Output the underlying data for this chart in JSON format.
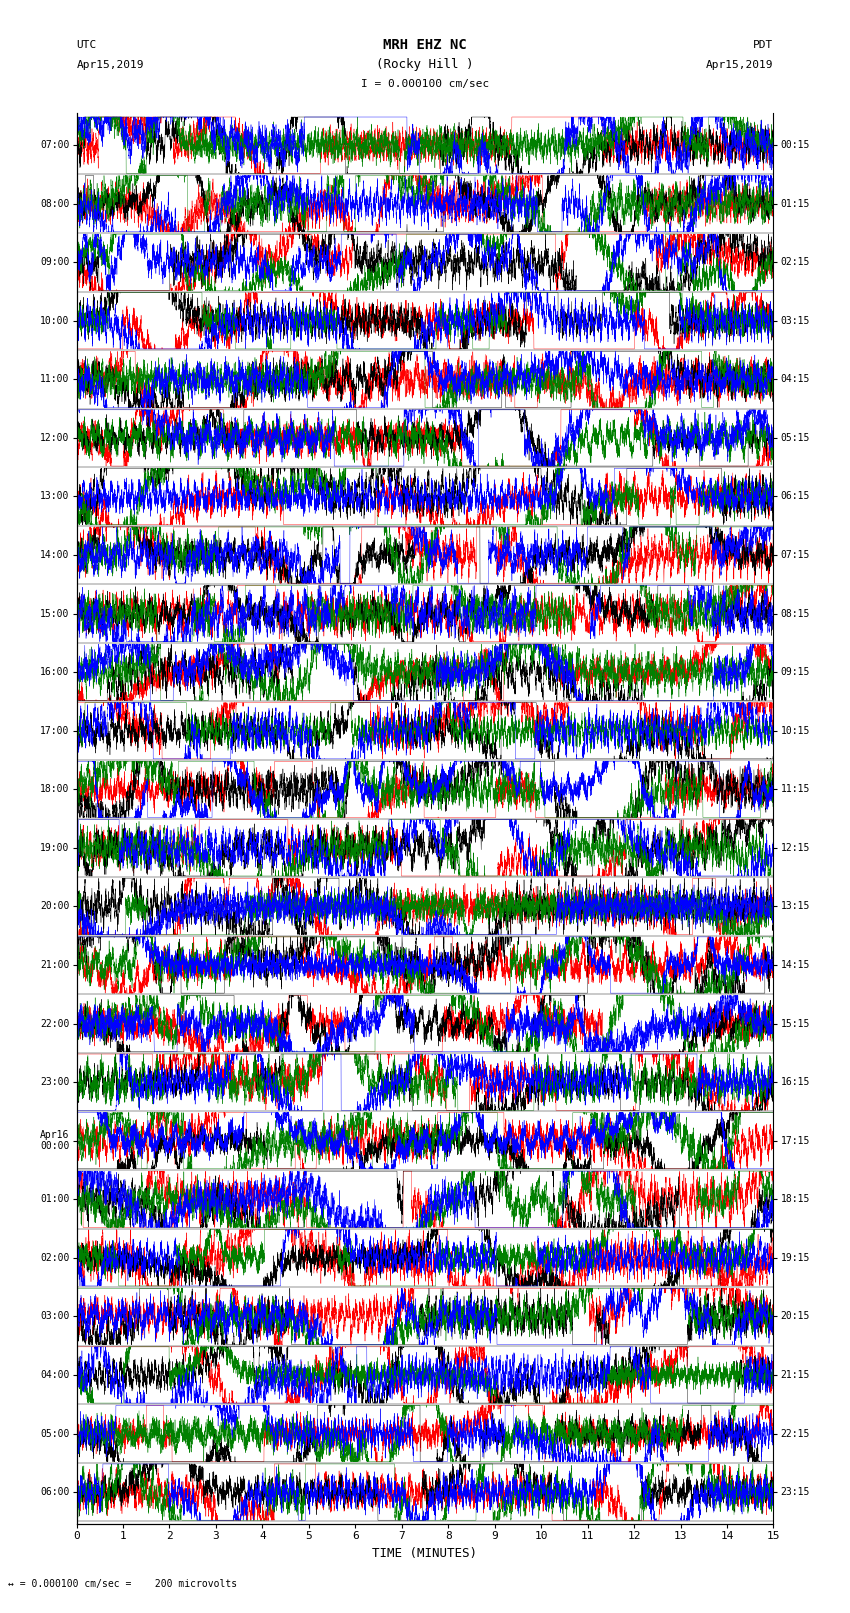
{
  "title_line1": "MRH EHZ NC",
  "title_line2": "(Rocky Hill )",
  "scale_label": "I = 0.000100 cm/sec",
  "left_header_line1": "UTC",
  "left_header_line2": "Apr15,2019",
  "right_header_line1": "PDT",
  "right_header_line2": "Apr15,2019",
  "bottom_label": "TIME (MINUTES)",
  "footer_label": "↔ = 0.000100 cm/sec =    200 microvolts",
  "xlabel_ticks": [
    0,
    1,
    2,
    3,
    4,
    5,
    6,
    7,
    8,
    9,
    10,
    11,
    12,
    13,
    14,
    15
  ],
  "left_time_labels": [
    "07:00",
    "08:00",
    "09:00",
    "10:00",
    "11:00",
    "12:00",
    "13:00",
    "14:00",
    "15:00",
    "16:00",
    "17:00",
    "18:00",
    "19:00",
    "20:00",
    "21:00",
    "22:00",
    "23:00",
    "Apr16\n00:00",
    "01:00",
    "02:00",
    "03:00",
    "04:00",
    "05:00",
    "06:00"
  ],
  "right_time_labels": [
    "00:15",
    "01:15",
    "02:15",
    "03:15",
    "04:15",
    "05:15",
    "06:15",
    "07:15",
    "08:15",
    "09:15",
    "10:15",
    "11:15",
    "12:15",
    "13:15",
    "14:15",
    "15:15",
    "16:15",
    "17:15",
    "18:15",
    "19:15",
    "20:15",
    "21:15",
    "22:15",
    "23:15"
  ],
  "n_traces": 24,
  "n_channels": 4,
  "trace_duration_minutes": 15,
  "bg_color": "white",
  "colors": [
    "red",
    "black",
    "green",
    "blue"
  ],
  "fig_width": 8.5,
  "fig_height": 16.13,
  "dpi": 100,
  "samples_per_trace": 9000,
  "lw": 0.3
}
